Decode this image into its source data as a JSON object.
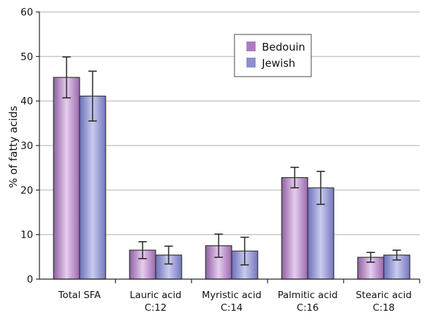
{
  "chart_data": {
    "type": "bar",
    "title": "",
    "xlabel": "",
    "ylabel": "% of fatty acids",
    "ylim": [
      0,
      60
    ],
    "yticks": [
      0,
      10,
      20,
      30,
      40,
      50,
      60
    ],
    "grid": true,
    "legend_position": "top-right",
    "categories": [
      {
        "line1": "Total SFA",
        "line2": ""
      },
      {
        "line1": "Lauric acid",
        "line2": "C:12"
      },
      {
        "line1": "Myristic acid",
        "line2": "C:14"
      },
      {
        "line1": "Palmitic acid",
        "line2": "C:16"
      },
      {
        "line1": "Stearic acid",
        "line2": "C:18"
      }
    ],
    "series": [
      {
        "name": "Bedouin",
        "color": "#b07cc0",
        "values": [
          45.3,
          6.5,
          7.5,
          22.8,
          4.9
        ],
        "errors": [
          4.6,
          1.9,
          2.6,
          2.3,
          1.1
        ]
      },
      {
        "name": "Jewish",
        "color": "#8e8fd0",
        "values": [
          41.1,
          5.4,
          6.3,
          20.5,
          5.4
        ],
        "errors": [
          5.6,
          2.0,
          3.1,
          3.7,
          1.1
        ]
      }
    ]
  }
}
